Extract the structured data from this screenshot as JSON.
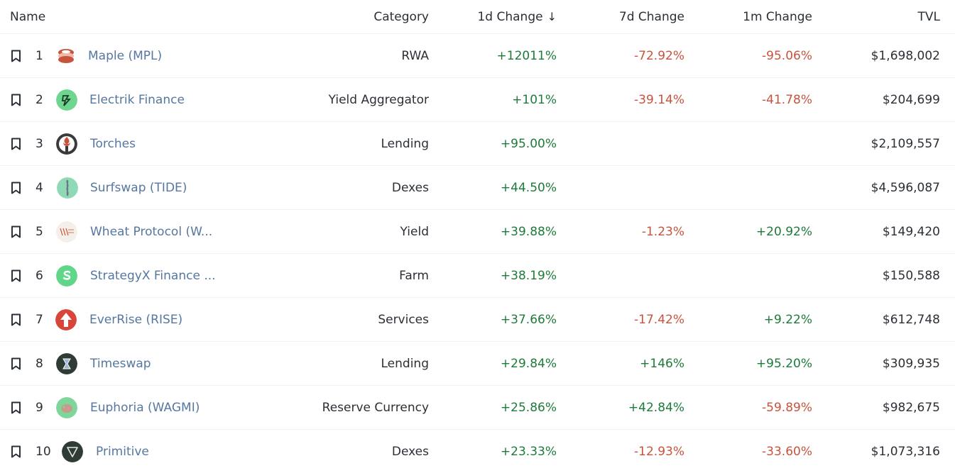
{
  "headers": {
    "name": "Name",
    "category": "Category",
    "change_1d": "1d Change",
    "change_7d": "7d Change",
    "change_1m": "1m Change",
    "tvl": "TVL",
    "sort_icon": "↓"
  },
  "rows": [
    {
      "rank": "1",
      "name": "Maple (MPL)",
      "category": "RWA",
      "change_1d": "+12011%",
      "change_7d": "-72.92%",
      "change_1m": "-95.06%",
      "tvl": "$1,698,002",
      "logo": "maple-logo"
    },
    {
      "rank": "2",
      "name": "Electrik Finance",
      "category": "Yield Aggregator",
      "change_1d": "+101%",
      "change_7d": "-39.14%",
      "change_1m": "-41.78%",
      "tvl": "$204,699",
      "logo": "electrik-logo"
    },
    {
      "rank": "3",
      "name": "Torches",
      "category": "Lending",
      "change_1d": "+95.00%",
      "change_7d": "",
      "change_1m": "",
      "tvl": "$2,109,557",
      "logo": "torches-logo"
    },
    {
      "rank": "4",
      "name": "Surfswap (TIDE)",
      "category": "Dexes",
      "change_1d": "+44.50%",
      "change_7d": "",
      "change_1m": "",
      "tvl": "$4,596,087",
      "logo": "surfswap-logo"
    },
    {
      "rank": "5",
      "name": "Wheat Protocol (W...",
      "category": "Yield",
      "change_1d": "+39.88%",
      "change_7d": "-1.23%",
      "change_1m": "+20.92%",
      "tvl": "$149,420",
      "logo": "wheat-logo"
    },
    {
      "rank": "6",
      "name": "StrategyX Finance ...",
      "category": "Farm",
      "change_1d": "+38.19%",
      "change_7d": "",
      "change_1m": "",
      "tvl": "$150,588",
      "logo": "strategyx-logo"
    },
    {
      "rank": "7",
      "name": "EverRise (RISE)",
      "category": "Services",
      "change_1d": "+37.66%",
      "change_7d": "-17.42%",
      "change_1m": "+9.22%",
      "tvl": "$612,748",
      "logo": "everrise-logo"
    },
    {
      "rank": "8",
      "name": "Timeswap",
      "category": "Lending",
      "change_1d": "+29.84%",
      "change_7d": "+146%",
      "change_1m": "+95.20%",
      "tvl": "$309,935",
      "logo": "timeswap-logo"
    },
    {
      "rank": "9",
      "name": "Euphoria (WAGMI)",
      "category": "Reserve Currency",
      "change_1d": "+25.86%",
      "change_7d": "+42.84%",
      "change_1m": "-59.89%",
      "tvl": "$982,675",
      "logo": "euphoria-logo"
    },
    {
      "rank": "10",
      "name": "Primitive",
      "category": "Dexes",
      "change_1d": "+23.33%",
      "change_7d": "-12.93%",
      "change_1m": "-33.60%",
      "tvl": "$1,073,316",
      "logo": "primitive-logo"
    }
  ],
  "colors": {
    "positive": "#1e7a3a",
    "negative": "#c8533d",
    "link": "#5577a0"
  }
}
